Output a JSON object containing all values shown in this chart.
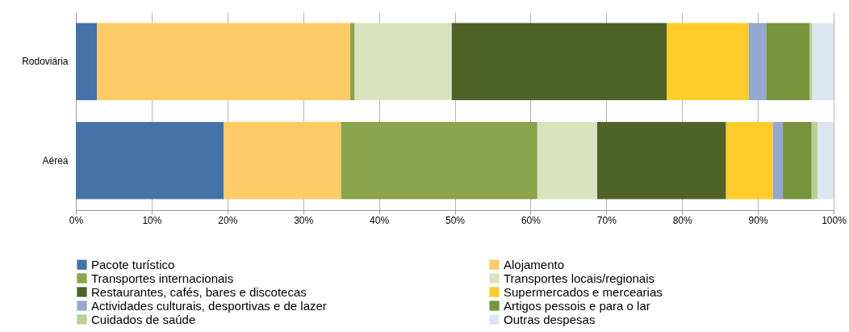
{
  "chart_data": {
    "type": "bar",
    "orientation": "horizontal",
    "stacked": true,
    "categories": [
      "Rodoviária",
      "Aérea"
    ],
    "series": [
      {
        "name": "Pacote turístico",
        "color": "#4573a7",
        "values": [
          2.8,
          19.5
        ]
      },
      {
        "name": "Alojamento",
        "color": "#fecb66",
        "values": [
          33.4,
          15.5
        ]
      },
      {
        "name": "Transportes internacionais",
        "color": "#8aa54c",
        "values": [
          0.6,
          25.9
        ]
      },
      {
        "name": "Transportes locais/regionais",
        "color": "#d9e4bf",
        "values": [
          12.8,
          7.9
        ]
      },
      {
        "name": "Restaurantes, cafés, bares e discotecas",
        "color": "#4f6228",
        "values": [
          28.4,
          17.0
        ]
      },
      {
        "name": "Supermercados e mercearias",
        "color": "#ffcc29",
        "values": [
          10.8,
          6.2
        ]
      },
      {
        "name": "Actividades culturais, desportivas e de lazer",
        "color": "#95a8d0",
        "values": [
          2.3,
          1.3
        ]
      },
      {
        "name": "Artigos pessois e para o lar",
        "color": "#77933c",
        "values": [
          5.7,
          3.8
        ]
      },
      {
        "name": "Cuidados de saúde",
        "color": "#b9cf96",
        "values": [
          0.4,
          0.8
        ]
      },
      {
        "name": "Outras despesas",
        "color": "#dce6f2",
        "values": [
          2.8,
          2.1
        ]
      }
    ],
    "xlim": [
      0,
      100
    ],
    "xticks": [
      {
        "value": 0,
        "label": "0%"
      },
      {
        "value": 10,
        "label": "10%"
      },
      {
        "value": 20,
        "label": "20%"
      },
      {
        "value": 30,
        "label": "30%"
      },
      {
        "value": 40,
        "label": "40%"
      },
      {
        "value": 50,
        "label": "50%"
      },
      {
        "value": 60,
        "label": "60%"
      },
      {
        "value": 70,
        "label": "70%"
      },
      {
        "value": 80,
        "label": "80%"
      },
      {
        "value": 90,
        "label": "90%"
      },
      {
        "value": 100,
        "label": "100%"
      }
    ],
    "grid": "x",
    "legend": "bottom"
  }
}
